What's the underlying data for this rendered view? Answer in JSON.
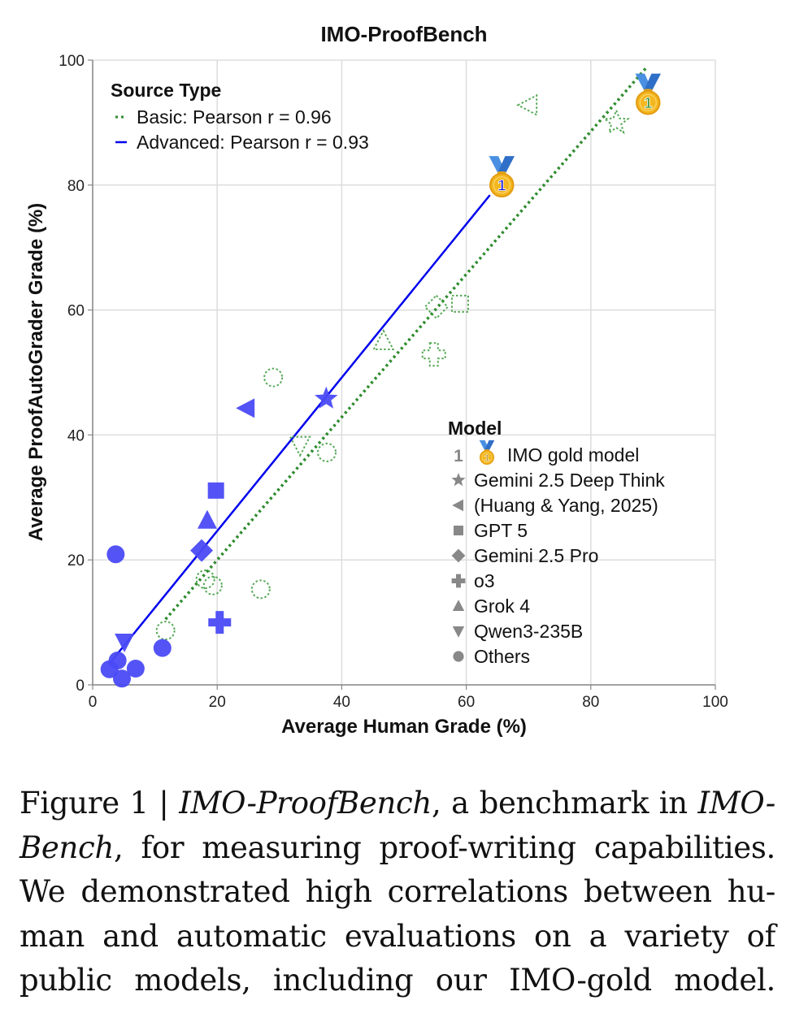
{
  "chart_data": {
    "type": "scatter",
    "title": "IMO-ProofBench",
    "xlabel": "Average Human Grade (%)",
    "ylabel": "Average ProofAutoGrader Grade (%)",
    "xlim": [
      0,
      100
    ],
    "ylim": [
      0,
      100
    ],
    "xticks": [
      0,
      20,
      40,
      60,
      80,
      100
    ],
    "yticks": [
      0,
      20,
      40,
      60,
      80,
      100
    ],
    "grid": true,
    "source_legend": {
      "title": "Source Type",
      "placement": "top-left",
      "entries": [
        {
          "key": "basic",
          "label": "Basic: Pearson r = 0.96",
          "color": "#2e8b2e",
          "style": "dotted"
        },
        {
          "key": "advanced",
          "label": "Advanced: Pearson r = 0.93",
          "color": "#0000ee",
          "style": "solid"
        }
      ]
    },
    "model_legend": {
      "title": "Model",
      "placement": "bottom-right",
      "entries": [
        {
          "marker": "medal",
          "label": "IMO gold model",
          "prefix": "1"
        },
        {
          "marker": "star",
          "label": "Gemini 2.5 Deep Think"
        },
        {
          "marker": "triangle-left",
          "label": "(Huang & Yang, 2025)"
        },
        {
          "marker": "square",
          "label": "GPT 5"
        },
        {
          "marker": "diamond",
          "label": "Gemini 2.5 Pro"
        },
        {
          "marker": "plus",
          "label": "o3"
        },
        {
          "marker": "triangle-up",
          "label": "Grok 4"
        },
        {
          "marker": "triangle-down",
          "label": "Qwen3-235B"
        },
        {
          "marker": "circle",
          "label": "Others"
        }
      ]
    },
    "series": [
      {
        "name": "Advanced",
        "color": "#4a4af5",
        "line_color": "#0000ee",
        "fill": "solid",
        "pearson_r": 0.93,
        "fit_line": [
          [
            2.7,
            3.4
          ],
          [
            63.8,
            78.4
          ]
        ],
        "points": [
          {
            "model": "IMO gold model",
            "marker": "medal",
            "x": 65.7,
            "y": 80.0
          },
          {
            "model": "Gemini 2.5 Deep Think",
            "marker": "star",
            "x": 37.5,
            "y": 45.8
          },
          {
            "model": "(Huang & Yang, 2025)",
            "marker": "triangle-left",
            "x": 24.7,
            "y": 44.3
          },
          {
            "model": "GPT 5",
            "marker": "square",
            "x": 19.8,
            "y": 31.1
          },
          {
            "model": "Gemini 2.5 Pro",
            "marker": "diamond",
            "x": 17.5,
            "y": 21.5
          },
          {
            "model": "o3",
            "marker": "plus",
            "x": 20.4,
            "y": 10.0
          },
          {
            "model": "Grok 4",
            "marker": "triangle-up",
            "x": 18.4,
            "y": 26.3
          },
          {
            "model": "Qwen3-235B",
            "marker": "triangle-down",
            "x": 5.1,
            "y": 6.9
          },
          {
            "model": "Others",
            "marker": "circle",
            "x": 3.7,
            "y": 20.9
          },
          {
            "model": "Others",
            "marker": "circle",
            "x": 2.7,
            "y": 2.5
          },
          {
            "model": "Others",
            "marker": "circle",
            "x": 4.0,
            "y": 3.9
          },
          {
            "model": "Others",
            "marker": "circle",
            "x": 4.7,
            "y": 1.0
          },
          {
            "model": "Others",
            "marker": "circle",
            "x": 6.9,
            "y": 2.6
          },
          {
            "model": "Others",
            "marker": "circle",
            "x": 11.2,
            "y": 5.9
          }
        ]
      },
      {
        "name": "Basic",
        "color": "#3a9a3a",
        "line_color": "#2e8b2e",
        "fill": "dotted-outline",
        "pearson_r": 0.96,
        "fit_line": [
          [
            11.7,
            10.5
          ],
          [
            89.1,
            99.0
          ]
        ],
        "points": [
          {
            "model": "IMO gold model",
            "marker": "medal",
            "x": 89.2,
            "y": 93.2
          },
          {
            "model": "Gemini 2.5 Deep Think",
            "marker": "star",
            "x": 84.1,
            "y": 90.0
          },
          {
            "model": "(Huang & Yang, 2025)",
            "marker": "triangle-left",
            "x": 70.0,
            "y": 92.8
          },
          {
            "model": "GPT 5",
            "marker": "square",
            "x": 59.0,
            "y": 61.0
          },
          {
            "model": "Gemini 2.5 Pro",
            "marker": "diamond",
            "x": 55.2,
            "y": 60.5
          },
          {
            "model": "o3",
            "marker": "plus",
            "x": 54.8,
            "y": 52.9
          },
          {
            "model": "Grok 4",
            "marker": "triangle-up",
            "x": 46.7,
            "y": 55.0
          },
          {
            "model": "Qwen3-235B",
            "marker": "triangle-down",
            "x": 33.3,
            "y": 38.4
          },
          {
            "model": "Others",
            "marker": "circle",
            "x": 29.0,
            "y": 49.2
          },
          {
            "model": "Others",
            "marker": "circle",
            "x": 37.6,
            "y": 37.2
          },
          {
            "model": "Others",
            "marker": "circle",
            "x": 18.1,
            "y": 16.9
          },
          {
            "model": "Others",
            "marker": "circle",
            "x": 19.3,
            "y": 15.9
          },
          {
            "model": "Others",
            "marker": "circle",
            "x": 27.0,
            "y": 15.3
          },
          {
            "model": "Others",
            "marker": "circle",
            "x": 11.7,
            "y": 8.7
          }
        ]
      }
    ]
  },
  "caption": {
    "lines": [
      [
        {
          "t": "Figure 1 | ",
          "i": false
        },
        {
          "t": "IMO-ProofBench",
          "i": true
        },
        {
          "t": ", a benchmark in ",
          "i": false
        },
        {
          "t": "IMO-",
          "i": true
        }
      ],
      [
        {
          "t": "Bench",
          "i": true
        },
        {
          "t": ", for measuring proof-writing capabilities.",
          "i": false
        }
      ],
      [
        {
          "t": "We demonstrated high correlations between hu-",
          "i": false
        }
      ],
      [
        {
          "t": "man and automatic evaluations on a variety of",
          "i": false
        }
      ],
      [
        {
          "t": "public models, including our IMO-gold model.",
          "i": false
        }
      ]
    ]
  }
}
